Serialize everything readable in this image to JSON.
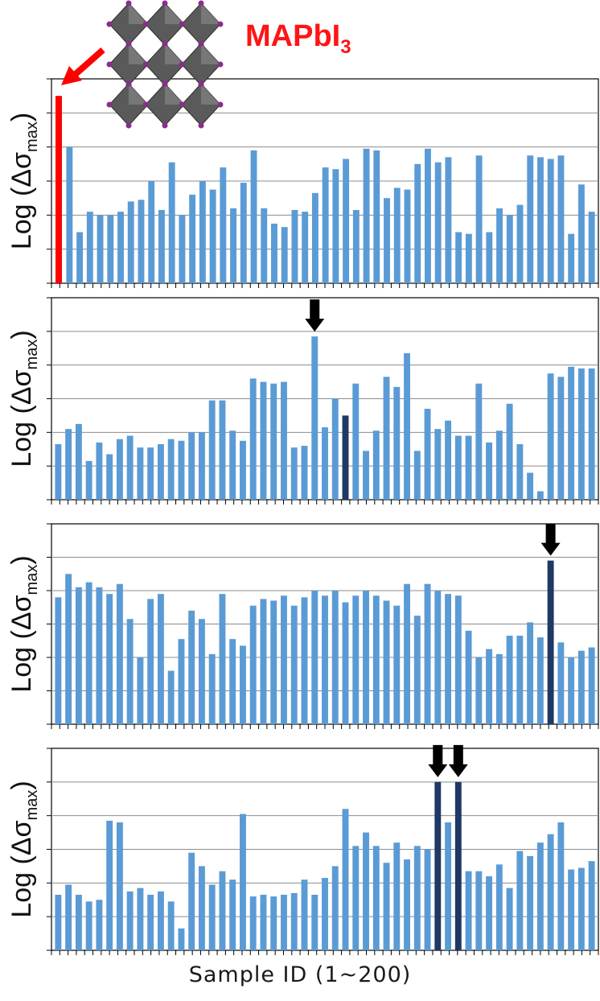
{
  "figure": {
    "x_axis_label": "Sample ID (1~200)",
    "compound_label": "MAPbI",
    "compound_subscript": "3",
    "colors": {
      "bar": "#5b9bd5",
      "highlight": "#1f3864",
      "reference": "#ff0000",
      "arrow": "#000000",
      "grid": "#8c8c8c"
    }
  },
  "chart_data": [
    {
      "type": "bar",
      "ylabel_prefix": "Log (Δσ",
      "ylabel_subscript": "max",
      "ylabel_suffix": ")",
      "ylim": [
        0,
        6
      ],
      "grid": true,
      "tick_labels": false,
      "reference_bar": {
        "label": "MAPbI3",
        "value": 5.5
      },
      "highlight_indices": [],
      "values": [
        4.0,
        1.5,
        2.1,
        2.0,
        2.0,
        2.1,
        2.4,
        2.45,
        3.0,
        2.15,
        3.55,
        2.0,
        2.6,
        3.0,
        2.75,
        3.4,
        2.2,
        2.95,
        3.9,
        2.2,
        1.75,
        1.65,
        2.15,
        2.1,
        2.65,
        3.4,
        3.35,
        3.65,
        2.15,
        3.95,
        3.9,
        2.5,
        2.8,
        2.75,
        3.5,
        3.95,
        3.55,
        3.7,
        1.5,
        1.45,
        3.75,
        1.5,
        2.2,
        2.0,
        2.3,
        3.75,
        3.7,
        3.65,
        3.75,
        1.45,
        2.9,
        2.1
      ],
      "arrows_above": []
    },
    {
      "type": "bar",
      "ylabel_prefix": "Log (Δσ",
      "ylabel_subscript": "max",
      "ylabel_suffix": ")",
      "ylim": [
        0,
        6
      ],
      "grid": true,
      "tick_labels": false,
      "highlight_indices": [
        28
      ],
      "values": [
        1.65,
        2.1,
        2.25,
        1.15,
        1.7,
        1.35,
        1.8,
        1.9,
        1.55,
        1.55,
        1.65,
        1.8,
        1.75,
        2.0,
        2.0,
        2.95,
        2.95,
        2.05,
        1.75,
        3.6,
        3.5,
        3.45,
        3.5,
        1.55,
        1.6,
        4.85,
        2.15,
        3.0,
        2.5,
        3.45,
        1.45,
        2.05,
        3.65,
        3.35,
        4.35,
        1.45,
        2.7,
        2.1,
        2.35,
        1.9,
        1.9,
        3.45,
        1.7,
        2.05,
        2.85,
        1.65,
        0.8,
        0.25,
        3.75,
        3.65,
        3.95,
        3.9,
        3.9
      ],
      "arrows_above": [
        25
      ]
    },
    {
      "type": "bar",
      "ylabel_prefix": "Log (Δσ",
      "ylabel_subscript": "max",
      "ylabel_suffix": ")",
      "ylim": [
        0,
        6
      ],
      "grid": true,
      "tick_labels": false,
      "highlight_indices": [],
      "values": [
        3.8,
        4.5,
        4.1,
        4.25,
        4.1,
        3.9,
        4.2,
        3.15,
        2.0,
        3.75,
        3.9,
        1.6,
        2.55,
        3.4,
        3.15,
        2.1,
        3.9,
        2.55,
        2.35,
        3.55,
        3.75,
        3.7,
        3.85,
        3.55,
        3.8,
        4.0,
        3.85,
        4.0,
        3.65,
        3.85,
        4.0,
        3.85,
        3.7,
        3.55,
        4.2,
        3.25,
        4.2,
        4.0,
        3.9,
        3.85,
        2.8,
        2.0,
        2.25,
        2.1,
        2.65,
        2.65,
        3.05,
        2.6,
        4.9,
        2.45,
        2.0,
        2.2,
        2.3
      ],
      "highlight_indices_2": [
        48
      ],
      "arrows_above": [
        48
      ]
    },
    {
      "type": "bar",
      "ylabel_prefix": "Log (Δσ",
      "ylabel_subscript": "max",
      "ylabel_suffix": ")",
      "ylim": [
        0,
        6
      ],
      "grid": true,
      "tick_labels": false,
      "highlight_indices": [
        37,
        39
      ],
      "values": [
        1.65,
        1.95,
        1.65,
        1.45,
        1.5,
        3.85,
        3.8,
        1.75,
        1.85,
        1.65,
        1.75,
        1.45,
        0.65,
        2.9,
        2.5,
        1.95,
        2.35,
        2.1,
        4.05,
        1.6,
        1.65,
        1.6,
        1.65,
        1.7,
        2.1,
        1.65,
        2.15,
        2.5,
        4.2,
        3.1,
        3.5,
        3.1,
        2.6,
        3.2,
        2.7,
        3.1,
        3.0,
        5.0,
        3.8,
        5.0,
        2.35,
        2.35,
        2.2,
        2.55,
        1.85,
        2.95,
        2.8,
        3.2,
        3.45,
        3.8,
        2.4,
        2.45,
        2.65
      ],
      "arrows_above": [
        37,
        39
      ]
    }
  ]
}
